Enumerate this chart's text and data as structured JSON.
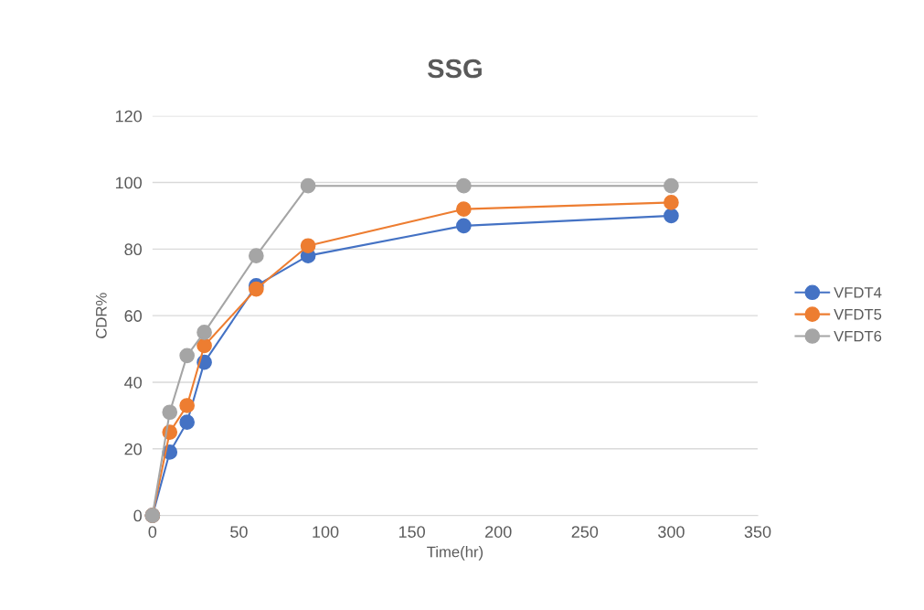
{
  "chart_data": {
    "type": "line",
    "title": "SSG",
    "xlabel": "Time(hr)",
    "ylabel": "CDR%",
    "x": [
      0,
      10,
      20,
      30,
      60,
      90,
      180,
      300
    ],
    "series": [
      {
        "name": "VFDT4",
        "color": "#4472c4",
        "values": [
          0,
          19,
          28,
          46,
          69,
          78,
          87,
          90
        ]
      },
      {
        "name": "VFDT5",
        "color": "#ed7d31",
        "values": [
          0,
          25,
          33,
          51,
          68,
          81,
          92,
          94
        ]
      },
      {
        "name": "VFDT6",
        "color": "#a5a5a5",
        "values": [
          0,
          31,
          48,
          55,
          78,
          99,
          99,
          99
        ]
      }
    ],
    "xlim": [
      0,
      350
    ],
    "xticks": [
      0,
      50,
      100,
      150,
      200,
      250,
      300,
      350
    ],
    "ylim": [
      0,
      120
    ],
    "yticks": [
      0,
      20,
      40,
      60,
      80,
      100,
      120
    ],
    "grid": "y",
    "legend": "right",
    "marker": "circle",
    "line_style": "solid"
  }
}
